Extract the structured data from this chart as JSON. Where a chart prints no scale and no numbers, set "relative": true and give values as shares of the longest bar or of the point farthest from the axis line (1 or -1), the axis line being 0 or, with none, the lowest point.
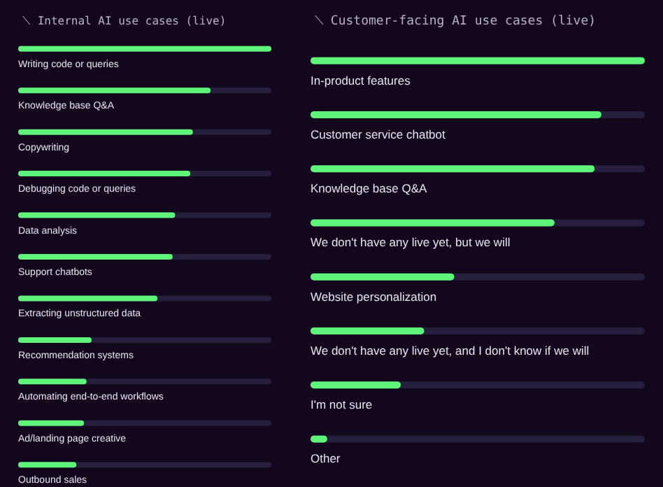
{
  "chart_data": [
    {
      "type": "bar",
      "title": "⟍ Internal AI use cases (live)",
      "orientation": "horizontal",
      "relative": true,
      "categories": [
        "Writing code or queries",
        "Knowledge base Q&A",
        "Copywriting",
        "Debugging code or queries",
        "Data analysis",
        "Support chatbots",
        "Extracting unstructured data",
        "Recommendation systems",
        "Automating end-to-end workflows",
        "Ad/landing page creative",
        "Outbound sales"
      ],
      "values": [
        1,
        0.76,
        0.69,
        0.68,
        0.62,
        0.61,
        0.55,
        0.29,
        0.27,
        0.26,
        0.23
      ],
      "color": "#5ef57a"
    },
    {
      "type": "bar",
      "title": "⟍ Customer-facing AI use cases (live)",
      "orientation": "horizontal",
      "relative": true,
      "categories": [
        "In-product features",
        "Customer service chatbot",
        "Knowledge base Q&A",
        "We don't have any live yet, but we will",
        "Website personalization",
        "We don't have any live yet, and I don't know if we will",
        "I'm not sure",
        "Other"
      ],
      "values": [
        1,
        0.87,
        0.85,
        0.73,
        0.43,
        0.34,
        0.27,
        0.05
      ],
      "color": "#5ef57a"
    }
  ]
}
